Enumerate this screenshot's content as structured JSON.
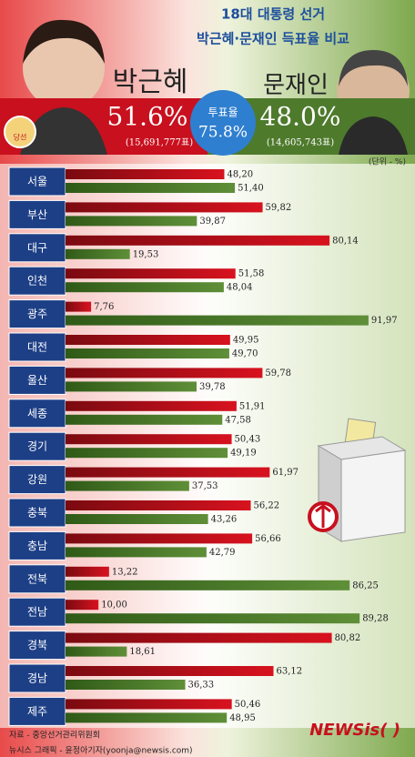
{
  "header": {
    "title": "18대 대통령 선거",
    "subtitle": "박근혜·문재인 득표율 비교",
    "winner_badge": "당선",
    "turnout_label": "투표율",
    "turnout": "75.8%",
    "candidates": [
      {
        "percent": "51.6%",
        "votes": "(15,691,777표)"
      },
      {
        "percent": "48.0%",
        "votes": "(14,605,743표)"
      }
    ],
    "unit": "(단위 - %)",
    "source": "자료 - 중앙선거관리위원회",
    "credit": "뉴시스 그래픽 - 윤정아기자(yoonja@newsis.com)",
    "logo": "NEWSis( )"
  },
  "chart_data": {
    "type": "hbar",
    "categories": [
      "서울",
      "부산",
      "대구",
      "인천",
      "광주",
      "대전",
      "울산",
      "세종",
      "경기",
      "강원",
      "충북",
      "충남",
      "전북",
      "전남",
      "경북",
      "경남",
      "제주"
    ],
    "series": [
      {
        "name": "박근혜",
        "color": "#c8101e",
        "values": [
          48.2,
          59.82,
          80.14,
          51.58,
          7.76,
          49.95,
          59.78,
          51.91,
          50.43,
          61.97,
          56.22,
          56.66,
          13.22,
          10.0,
          80.82,
          63.12,
          50.46
        ],
        "value_labels": [
          "48,20",
          "59,82",
          "80,14",
          "51,58",
          "7,76",
          "49,95",
          "59,78",
          "51,91",
          "50,43",
          "61,97",
          "56,22",
          "56,66",
          "13,22",
          "10,00",
          "80,82",
          "63,12",
          "50,46"
        ]
      },
      {
        "name": "문재인",
        "color": "#4e7a2c",
        "values": [
          51.4,
          39.87,
          19.53,
          48.04,
          91.97,
          49.7,
          39.78,
          47.58,
          49.19,
          37.53,
          43.26,
          42.79,
          86.25,
          89.28,
          18.61,
          36.33,
          48.95
        ],
        "value_labels": [
          "51,40",
          "39,87",
          "19,53",
          "48,04",
          "91,97",
          "49,70",
          "39,78",
          "47,58",
          "49,19",
          "37,53",
          "43,26",
          "42,79",
          "86,25",
          "89,28",
          "18,61",
          "36,33",
          "48,95"
        ]
      }
    ]
  }
}
